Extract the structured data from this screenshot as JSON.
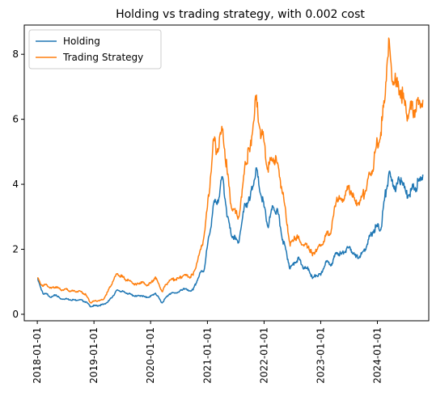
{
  "chart_data": {
    "type": "line",
    "title": "Holding vs trading strategy, with 0.002 cost",
    "xlabel": "",
    "ylabel": "",
    "x_range": [
      "2017-10-09",
      "2024-11-27"
    ],
    "ylim": [
      -0.2,
      8.9
    ],
    "x_ticks": [
      "2018-01-01",
      "2019-01-01",
      "2020-01-01",
      "2021-01-01",
      "2022-01-01",
      "2023-01-01",
      "2024-01-01",
      "2025-01-01"
    ],
    "x_tick_labels": [
      "2018-01-01",
      "2019-01-01",
      "2020-01-01",
      "2021-01-01",
      "2022-01-01",
      "2023-01-01",
      "2024-01-01",
      ""
    ],
    "y_ticks": [
      0,
      2,
      4,
      6,
      8
    ],
    "grid": false,
    "legend_position": "top-left",
    "series": [
      {
        "name": "Holding",
        "color": "#1f77b4",
        "x": [
          "2018-01-01",
          "2018-01-20",
          "2018-02-10",
          "2018-03-05",
          "2018-04-01",
          "2018-05-01",
          "2018-06-01",
          "2018-07-01",
          "2018-08-01",
          "2018-09-01",
          "2018-10-01",
          "2018-11-10",
          "2018-12-10",
          "2019-01-01",
          "2019-02-01",
          "2019-03-01",
          "2019-04-01",
          "2019-05-01",
          "2019-06-01",
          "2019-07-01",
          "2019-08-01",
          "2019-09-01",
          "2019-10-01",
          "2019-11-01",
          "2019-12-01",
          "2020-01-01",
          "2020-02-01",
          "2020-03-15",
          "2020-04-01",
          "2020-05-01",
          "2020-06-01",
          "2020-07-01",
          "2020-08-01",
          "2020-09-01",
          "2020-10-01",
          "2020-11-01",
          "2020-11-20",
          "2020-12-10",
          "2021-01-01",
          "2021-01-20",
          "2021-02-10",
          "2021-03-01",
          "2021-04-10",
          "2021-05-10",
          "2021-06-01",
          "2021-07-01",
          "2021-07-20",
          "2021-08-10",
          "2021-09-01",
          "2021-10-01",
          "2021-11-10",
          "2021-12-01",
          "2022-01-01",
          "2022-01-25",
          "2022-03-01",
          "2022-04-01",
          "2022-05-01",
          "2022-05-20",
          "2022-06-18",
          "2022-07-15",
          "2022-08-15",
          "2022-09-15",
          "2022-10-15",
          "2022-11-09",
          "2022-12-01",
          "2023-01-01",
          "2023-02-01",
          "2023-03-10",
          "2023-04-15",
          "2023-05-15",
          "2023-06-15",
          "2023-07-15",
          "2023-08-15",
          "2023-09-15",
          "2023-10-15",
          "2023-11-15",
          "2023-12-10",
          "2024-01-01",
          "2024-01-23",
          "2024-02-15",
          "2024-03-14",
          "2024-04-01",
          "2024-05-01",
          "2024-06-01",
          "2024-07-05",
          "2024-08-05",
          "2024-09-01",
          "2024-10-01",
          "2024-10-20"
        ],
        "values": [
          1.1,
          0.85,
          0.62,
          0.62,
          0.52,
          0.6,
          0.47,
          0.48,
          0.45,
          0.44,
          0.45,
          0.38,
          0.24,
          0.26,
          0.27,
          0.3,
          0.38,
          0.55,
          0.75,
          0.7,
          0.65,
          0.6,
          0.55,
          0.58,
          0.52,
          0.55,
          0.65,
          0.35,
          0.47,
          0.63,
          0.66,
          0.68,
          0.8,
          0.72,
          0.75,
          1.1,
          1.3,
          1.35,
          2.1,
          2.6,
          3.4,
          3.4,
          4.2,
          3.0,
          2.5,
          2.3,
          2.2,
          2.8,
          3.4,
          3.5,
          4.5,
          3.9,
          3.3,
          2.7,
          3.3,
          3.1,
          2.3,
          2.0,
          1.4,
          1.6,
          1.7,
          1.4,
          1.4,
          1.1,
          1.2,
          1.2,
          1.6,
          1.55,
          1.9,
          1.85,
          2.0,
          2.0,
          1.75,
          1.8,
          2.0,
          2.4,
          2.6,
          2.7,
          2.6,
          3.5,
          4.3,
          4.1,
          3.9,
          4.2,
          3.7,
          3.8,
          3.9,
          4.1,
          4.3
        ]
      },
      {
        "name": "Trading Strategy",
        "color": "#ff7f0e",
        "x": [
          "2018-01-01",
          "2018-01-20",
          "2018-02-10",
          "2018-03-05",
          "2018-04-01",
          "2018-05-01",
          "2018-06-01",
          "2018-07-01",
          "2018-08-01",
          "2018-09-01",
          "2018-10-01",
          "2018-11-10",
          "2018-12-10",
          "2019-01-01",
          "2019-02-01",
          "2019-03-01",
          "2019-04-01",
          "2019-05-01",
          "2019-06-01",
          "2019-07-01",
          "2019-08-01",
          "2019-09-01",
          "2019-10-01",
          "2019-11-01",
          "2019-12-01",
          "2020-01-01",
          "2020-02-01",
          "2020-03-15",
          "2020-04-01",
          "2020-05-01",
          "2020-06-01",
          "2020-07-01",
          "2020-08-01",
          "2020-09-01",
          "2020-10-01",
          "2020-11-01",
          "2020-11-20",
          "2020-12-10",
          "2021-01-01",
          "2021-01-20",
          "2021-02-10",
          "2021-03-01",
          "2021-04-10",
          "2021-05-10",
          "2021-06-01",
          "2021-07-01",
          "2021-07-20",
          "2021-08-10",
          "2021-09-01",
          "2021-10-01",
          "2021-11-10",
          "2021-12-01",
          "2022-01-01",
          "2022-01-25",
          "2022-03-01",
          "2022-04-01",
          "2022-05-01",
          "2022-05-20",
          "2022-06-18",
          "2022-07-15",
          "2022-08-15",
          "2022-09-15",
          "2022-10-15",
          "2022-11-09",
          "2022-12-01",
          "2023-01-01",
          "2023-02-01",
          "2023-03-10",
          "2023-04-15",
          "2023-05-15",
          "2023-06-15",
          "2023-07-15",
          "2023-08-15",
          "2023-09-15",
          "2023-10-15",
          "2023-11-15",
          "2023-12-10",
          "2024-01-01",
          "2024-01-23",
          "2024-02-15",
          "2024-03-14",
          "2024-04-01",
          "2024-05-01",
          "2024-06-01",
          "2024-07-05",
          "2024-08-05",
          "2024-09-01",
          "2024-10-01",
          "2024-10-20"
        ],
        "values": [
          1.12,
          0.95,
          0.88,
          0.9,
          0.8,
          0.85,
          0.75,
          0.78,
          0.72,
          0.7,
          0.72,
          0.6,
          0.35,
          0.4,
          0.42,
          0.45,
          0.7,
          1.0,
          1.25,
          1.15,
          1.05,
          1.0,
          0.9,
          1.0,
          0.9,
          0.95,
          1.15,
          0.7,
          0.85,
          1.05,
          1.08,
          1.1,
          1.2,
          1.15,
          1.2,
          1.7,
          2.0,
          2.4,
          3.3,
          4.2,
          5.4,
          5.0,
          5.7,
          4.3,
          3.4,
          3.1,
          3.0,
          3.6,
          4.7,
          5.0,
          6.6,
          5.8,
          5.3,
          4.5,
          4.8,
          4.6,
          3.7,
          3.2,
          2.1,
          2.4,
          2.3,
          2.1,
          2.1,
          1.8,
          2.0,
          2.1,
          2.4,
          2.6,
          3.6,
          3.5,
          3.8,
          3.8,
          3.4,
          3.5,
          3.8,
          4.3,
          4.7,
          5.3,
          5.6,
          6.5,
          8.5,
          7.5,
          7.0,
          6.9,
          6.2,
          6.3,
          6.3,
          6.5,
          6.6
        ]
      }
    ]
  }
}
